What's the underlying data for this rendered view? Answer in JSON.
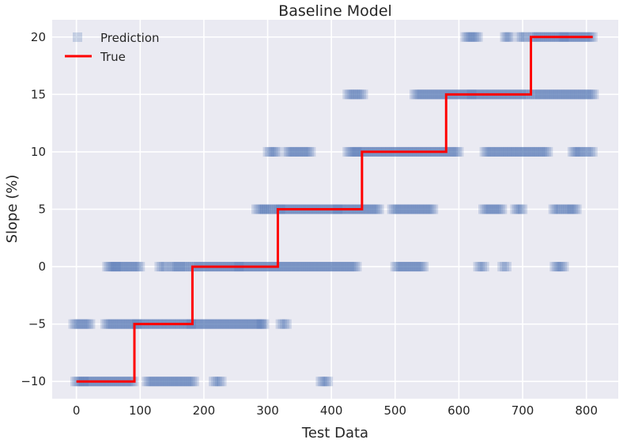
{
  "chart_data": {
    "type": "scatter",
    "title": "Baseline Model",
    "xlabel": "Test Data",
    "ylabel": "Slope (%)",
    "xlim": [
      -38,
      850
    ],
    "ylim": [
      -11.5,
      21.5
    ],
    "xticks": [
      0,
      100,
      200,
      300,
      400,
      500,
      600,
      700,
      800
    ],
    "yticks": [
      -10,
      -5,
      0,
      5,
      10,
      15,
      20
    ],
    "grid": true,
    "legend_position": "top-left",
    "colors": {
      "background": "#eaeaf2",
      "grid": "#ffffff",
      "prediction": "#4c72b0",
      "true": "#ff0000"
    },
    "series": [
      {
        "name": "Prediction",
        "kind": "markers",
        "marker": "square",
        "alpha": 0.22,
        "clusters": [
          {
            "y": -10,
            "ranges": [
              [
                -2,
                12
              ],
              [
                12,
                90
              ],
              [
                110,
                185
              ],
              [
                215,
                228
              ],
              [
                383,
                395
              ]
            ]
          },
          {
            "y": -5,
            "ranges": [
              [
                -5,
                22
              ],
              [
                45,
                95
              ],
              [
                95,
                180
              ],
              [
                180,
                290
              ],
              [
                290,
                295
              ],
              [
                320,
                330
              ]
            ]
          },
          {
            "y": 0,
            "ranges": [
              [
                48,
                62
              ],
              [
                62,
                100
              ],
              [
                130,
                140
              ],
              [
                148,
                175
              ],
              [
                180,
                255
              ],
              [
                255,
                440
              ],
              [
                500,
                545
              ],
              [
                630,
                640
              ],
              [
                668,
                675
              ],
              [
                750,
                765
              ]
            ]
          },
          {
            "y": 5,
            "ranges": [
              [
                282,
                295
              ],
              [
                295,
                320
              ],
              [
                320,
                410
              ],
              [
                410,
                475
              ],
              [
                495,
                560
              ],
              [
                638,
                668
              ],
              [
                688,
                700
              ],
              [
                748,
                760
              ],
              [
                765,
                785
              ]
            ]
          },
          {
            "y": 10,
            "ranges": [
              [
                300,
                315
              ],
              [
                330,
                368
              ],
              [
                425,
                440
              ],
              [
                440,
                600
              ],
              [
                640,
                740
              ],
              [
                778,
                795
              ],
              [
                800,
                810
              ]
            ]
          },
          {
            "y": 15,
            "ranges": [
              [
                425,
                450
              ],
              [
                530,
                620
              ],
              [
                620,
                710
              ],
              [
                715,
                812
              ]
            ]
          },
          {
            "y": 20,
            "ranges": [
              [
                610,
                630
              ],
              [
                672,
                680
              ],
              [
                695,
                705
              ],
              [
                713,
                765
              ],
              [
                765,
                810
              ]
            ]
          }
        ]
      },
      {
        "name": "True",
        "kind": "step",
        "steps": [
          {
            "x": 0,
            "y": -10
          },
          {
            "x": 91,
            "y": -5
          },
          {
            "x": 182,
            "y": 0
          },
          {
            "x": 316,
            "y": 5
          },
          {
            "x": 448,
            "y": 10
          },
          {
            "x": 580,
            "y": 15
          },
          {
            "x": 713,
            "y": 20
          }
        ],
        "x_end": 810
      }
    ]
  }
}
